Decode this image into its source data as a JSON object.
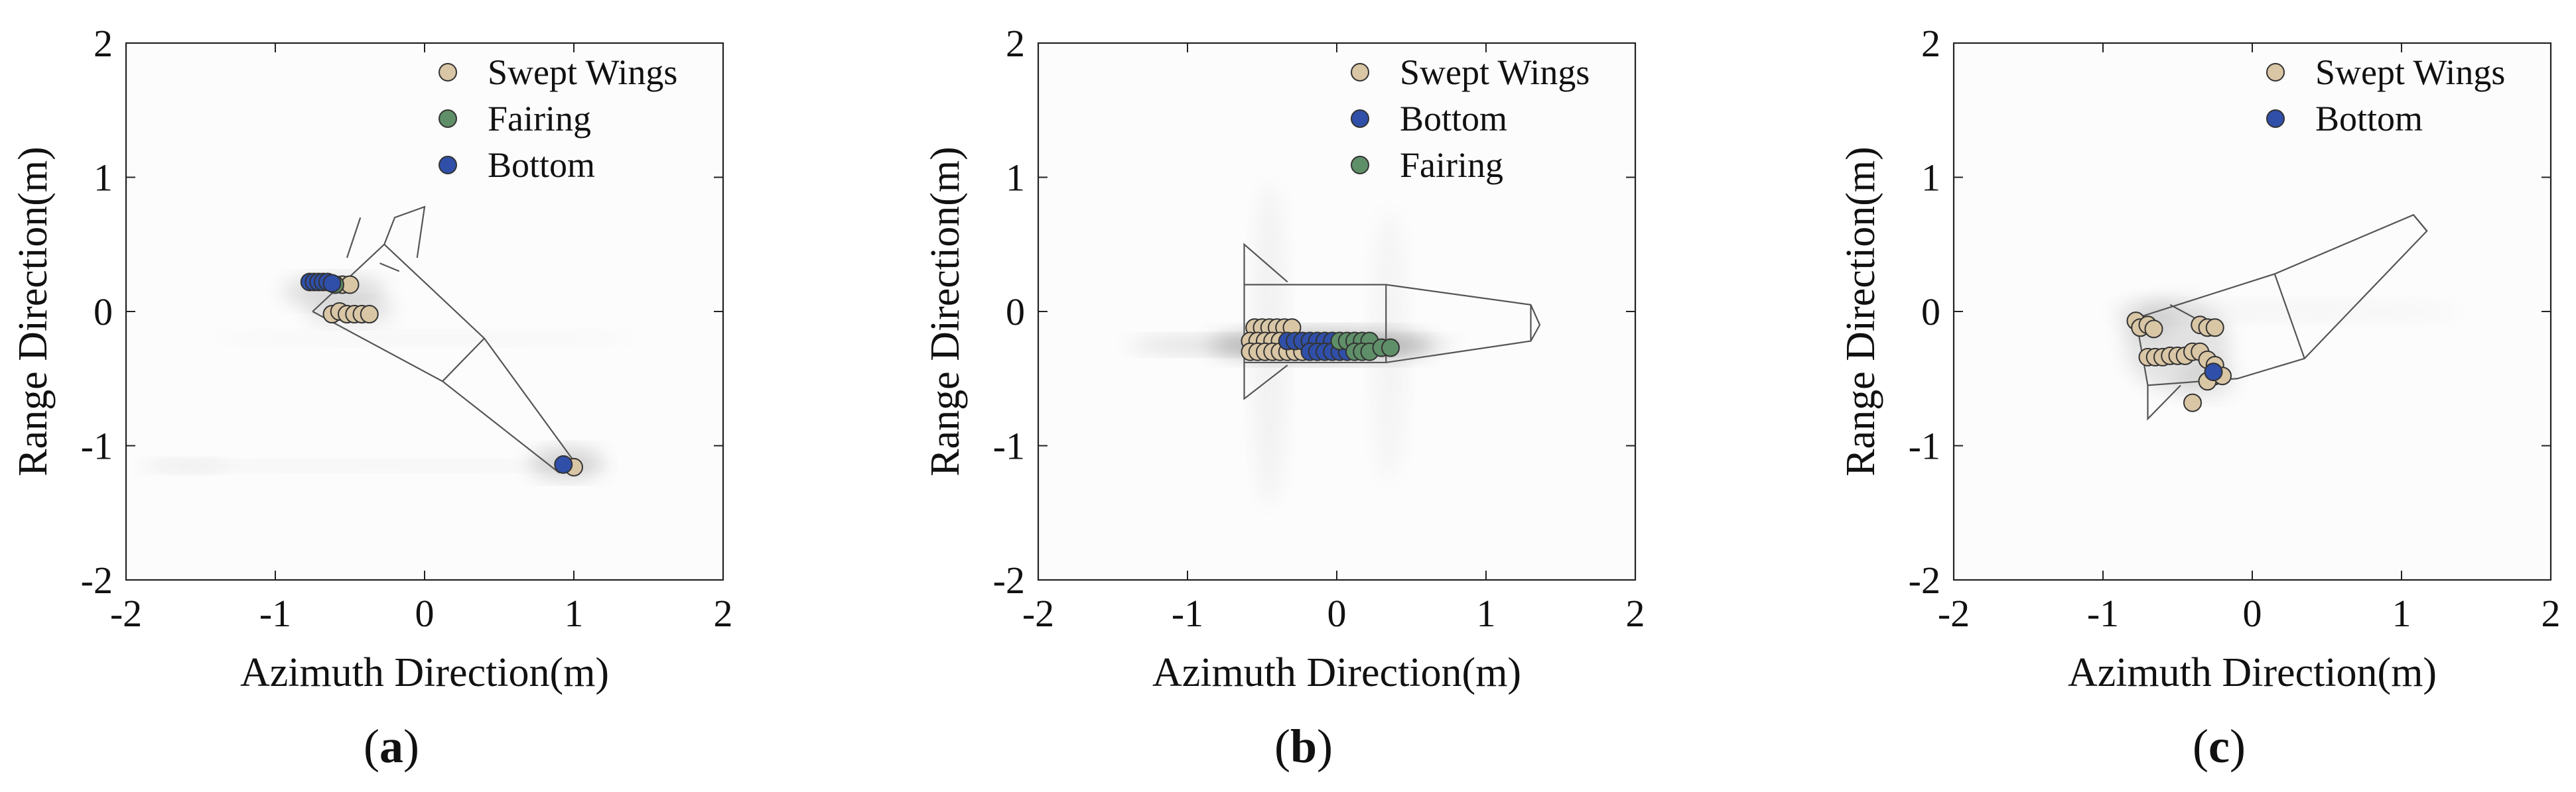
{
  "chart_data": [
    {
      "type": "scatter",
      "panel_label": "(a)",
      "panel_letter": "a",
      "xlabel": "Azimuth Direction(m)",
      "ylabel": "Range Direction(m)",
      "xlim": [
        -2,
        2
      ],
      "ylim": [
        -2,
        2
      ],
      "xticks": [
        -2,
        -1,
        0,
        1,
        2
      ],
      "yticks": [
        -2,
        -1,
        0,
        1,
        2
      ],
      "grid": false,
      "legend_position": "top-right",
      "background": "grayscale SAR image",
      "target_outline": "rotated rocket body, nose toward lower-right",
      "series": [
        {
          "name": "Swept Wings",
          "color": "#d9c6a5",
          "points": [
            [
              -0.62,
              -0.02
            ],
            [
              -0.57,
              0.0
            ],
            [
              -0.52,
              -0.02
            ],
            [
              -0.47,
              -0.02
            ],
            [
              -0.42,
              -0.02
            ],
            [
              -0.37,
              -0.02
            ],
            [
              -0.55,
              0.2
            ],
            [
              -0.5,
              0.2
            ],
            [
              1.0,
              -1.16
            ]
          ]
        },
        {
          "name": "Fairing",
          "color": "#5f8f68",
          "points": [
            [
              -0.6,
              0.2
            ]
          ]
        },
        {
          "name": "Bottom",
          "color": "#2f4fa8",
          "points": [
            [
              -0.77,
              0.22
            ],
            [
              -0.74,
              0.22
            ],
            [
              -0.71,
              0.22
            ],
            [
              -0.68,
              0.22
            ],
            [
              -0.65,
              0.22
            ],
            [
              -0.62,
              0.21
            ],
            [
              0.93,
              -1.14
            ]
          ]
        }
      ]
    },
    {
      "type": "scatter",
      "panel_label": "(b)",
      "panel_letter": "b",
      "xlabel": "Azimuth Direction(m)",
      "ylabel": "Range Direction(m)",
      "xlim": [
        -2,
        2
      ],
      "ylim": [
        -2,
        2
      ],
      "xticks": [
        -2,
        -1,
        0,
        1,
        2
      ],
      "yticks": [
        -2,
        -1,
        0,
        1,
        2
      ],
      "grid": false,
      "legend_position": "top-right",
      "background": "grayscale SAR image",
      "target_outline": "horizontal rocket body, nose toward right",
      "series": [
        {
          "name": "Swept Wings",
          "color": "#d9c6a5",
          "points": [
            [
              -0.55,
              -0.12
            ],
            [
              -0.5,
              -0.12
            ],
            [
              -0.45,
              -0.12
            ],
            [
              -0.4,
              -0.12
            ],
            [
              -0.35,
              -0.12
            ],
            [
              -0.3,
              -0.12
            ],
            [
              -0.58,
              -0.22
            ],
            [
              -0.53,
              -0.22
            ],
            [
              -0.48,
              -0.22
            ],
            [
              -0.43,
              -0.22
            ],
            [
              -0.38,
              -0.22
            ],
            [
              -0.58,
              -0.3
            ],
            [
              -0.53,
              -0.3
            ],
            [
              -0.48,
              -0.3
            ],
            [
              -0.43,
              -0.3
            ],
            [
              -0.38,
              -0.3
            ],
            [
              -0.33,
              -0.3
            ],
            [
              -0.28,
              -0.3
            ],
            [
              -0.23,
              -0.3
            ]
          ]
        },
        {
          "name": "Bottom",
          "color": "#2f4fa8",
          "points": [
            [
              -0.33,
              -0.22
            ],
            [
              -0.28,
              -0.22
            ],
            [
              -0.23,
              -0.22
            ],
            [
              -0.18,
              -0.22
            ],
            [
              -0.13,
              -0.22
            ],
            [
              -0.08,
              -0.22
            ],
            [
              -0.03,
              -0.22
            ],
            [
              -0.18,
              -0.3
            ],
            [
              -0.13,
              -0.3
            ],
            [
              -0.08,
              -0.3
            ],
            [
              -0.03,
              -0.3
            ],
            [
              0.02,
              -0.3
            ],
            [
              0.07,
              -0.3
            ]
          ]
        },
        {
          "name": "Fairing",
          "color": "#5f8f68",
          "points": [
            [
              0.02,
              -0.22
            ],
            [
              0.07,
              -0.22
            ],
            [
              0.12,
              -0.22
            ],
            [
              0.17,
              -0.22
            ],
            [
              0.22,
              -0.22
            ],
            [
              0.12,
              -0.3
            ],
            [
              0.17,
              -0.3
            ],
            [
              0.22,
              -0.3
            ],
            [
              0.3,
              -0.27
            ],
            [
              0.36,
              -0.27
            ]
          ]
        }
      ]
    },
    {
      "type": "scatter",
      "panel_label": "(c)",
      "panel_letter": "c",
      "xlabel": "Azimuth Direction(m)",
      "ylabel": "Range Direction(m)",
      "xlim": [
        -2,
        2
      ],
      "ylim": [
        -2,
        2
      ],
      "xticks": [
        -2,
        -1,
        0,
        1,
        2
      ],
      "yticks": [
        -2,
        -1,
        0,
        1,
        2
      ],
      "grid": false,
      "legend_position": "top-right",
      "background": "grayscale SAR image",
      "target_outline": "rotated rocket body, nose toward upper-right",
      "series": [
        {
          "name": "Swept Wings",
          "color": "#d9c6a5",
          "points": [
            [
              -0.78,
              -0.07
            ],
            [
              -0.75,
              -0.12
            ],
            [
              -0.7,
              -0.1
            ],
            [
              -0.66,
              -0.13
            ],
            [
              -0.7,
              -0.34
            ],
            [
              -0.65,
              -0.34
            ],
            [
              -0.6,
              -0.34
            ],
            [
              -0.55,
              -0.33
            ],
            [
              -0.5,
              -0.33
            ],
            [
              -0.45,
              -0.33
            ],
            [
              -0.4,
              -0.3
            ],
            [
              -0.35,
              -0.3
            ],
            [
              -0.3,
              -0.36
            ],
            [
              -0.25,
              -0.4
            ],
            [
              -0.25,
              -0.48
            ],
            [
              -0.3,
              -0.52
            ],
            [
              -0.2,
              -0.48
            ],
            [
              -0.35,
              -0.1
            ],
            [
              -0.3,
              -0.12
            ],
            [
              -0.25,
              -0.12
            ],
            [
              -0.4,
              -0.68
            ]
          ]
        },
        {
          "name": "Bottom",
          "color": "#2f4fa8",
          "points": [
            [
              -0.26,
              -0.45
            ]
          ]
        }
      ]
    }
  ]
}
